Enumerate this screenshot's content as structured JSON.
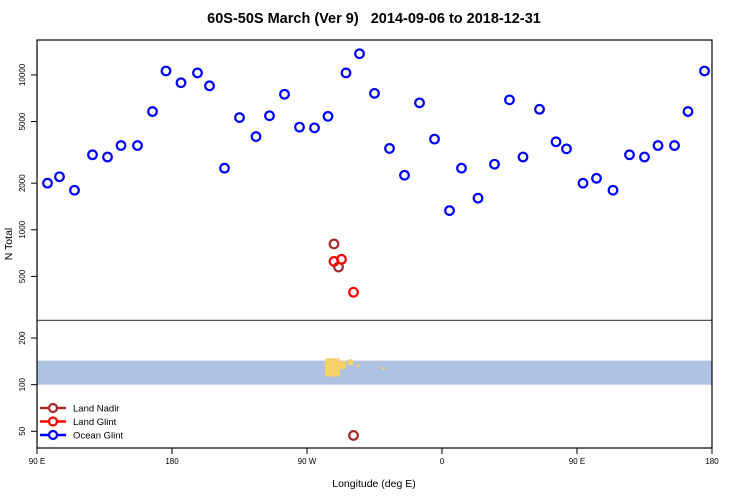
{
  "chart_data": {
    "type": "scatter",
    "title": "60S-50S March (Ver 9)   2014-09-06 to 2018-12-31",
    "xlabel": "Longitude (deg E)",
    "ylabel": "N Total",
    "x_axis": {
      "range": [
        90,
        540
      ],
      "ticks": [
        90,
        180,
        270,
        360,
        450,
        540
      ],
      "labels": [
        "90 E",
        "180",
        "90 W",
        "0",
        "90 E",
        "180"
      ],
      "note": "degrees east, continuous wrap: 270=90W, 360=0, 450=90E"
    },
    "y_axis": {
      "scale": "log",
      "range": [
        39,
        16800
      ],
      "ticks": [
        50,
        100,
        200,
        500,
        1000,
        2000,
        5000,
        10000
      ]
    },
    "reference_line_y": 260,
    "map_strip": {
      "y_range": [
        100,
        143
      ],
      "ocean_color": "#AEC3E1",
      "land_color": "#F6D06A",
      "land_regions": [
        {
          "deg": [
            282,
            292
          ],
          "v": [
            113,
            148
          ]
        },
        {
          "deg": [
            292,
            296
          ],
          "v": [
            126,
            142
          ]
        },
        {
          "deg": [
            297,
            301
          ],
          "v": [
            134,
            146
          ]
        },
        {
          "deg": [
            303,
            305
          ],
          "v": [
            130,
            136
          ]
        },
        {
          "deg": [
            320,
            322
          ],
          "v": [
            124,
            130
          ]
        }
      ]
    },
    "series": [
      {
        "name": "Land Nadir",
        "color": "#A52A2A",
        "points": [
          [
            288,
            810
          ],
          [
            291,
            575
          ],
          [
            301,
            47
          ]
        ]
      },
      {
        "name": "Land Glint",
        "color": "#FF0000",
        "points": [
          [
            288,
            625
          ],
          [
            293,
            645
          ],
          [
            301,
            395
          ]
        ]
      },
      {
        "name": "Ocean Glint",
        "color": "#0000FF",
        "points": [
          [
            97,
            2000
          ],
          [
            105,
            2200
          ],
          [
            115,
            1800
          ],
          [
            127,
            3050
          ],
          [
            137,
            2950
          ],
          [
            146,
            3500
          ],
          [
            157,
            3500
          ],
          [
            167,
            5800
          ],
          [
            176,
            10600
          ],
          [
            186,
            8900
          ],
          [
            197,
            10300
          ],
          [
            205,
            8500
          ],
          [
            215,
            2500
          ],
          [
            225,
            5300
          ],
          [
            236,
            4000
          ],
          [
            245,
            5450
          ],
          [
            255,
            7500
          ],
          [
            265,
            4600
          ],
          [
            275,
            4550
          ],
          [
            284,
            5400
          ],
          [
            296,
            10300
          ],
          [
            305,
            13700
          ],
          [
            315,
            7600
          ],
          [
            325,
            3350
          ],
          [
            335,
            2250
          ],
          [
            345,
            6600
          ],
          [
            355,
            3850
          ],
          [
            365,
            1330
          ],
          [
            373,
            2500
          ],
          [
            384,
            1600
          ],
          [
            395,
            2650
          ],
          [
            405,
            6900
          ],
          [
            414,
            2950
          ],
          [
            425,
            6000
          ],
          [
            436,
            3700
          ],
          [
            443,
            3330
          ],
          [
            454,
            2000
          ],
          [
            463,
            2150
          ],
          [
            474,
            1800
          ],
          [
            485,
            3050
          ],
          [
            495,
            2950
          ],
          [
            504,
            3500
          ],
          [
            515,
            3500
          ],
          [
            524,
            5800
          ],
          [
            535,
            10600
          ]
        ]
      }
    ],
    "legend": {
      "position": "bottom-left",
      "items": [
        "Land Nadir",
        "Land Glint",
        "Ocean Glint"
      ]
    }
  }
}
